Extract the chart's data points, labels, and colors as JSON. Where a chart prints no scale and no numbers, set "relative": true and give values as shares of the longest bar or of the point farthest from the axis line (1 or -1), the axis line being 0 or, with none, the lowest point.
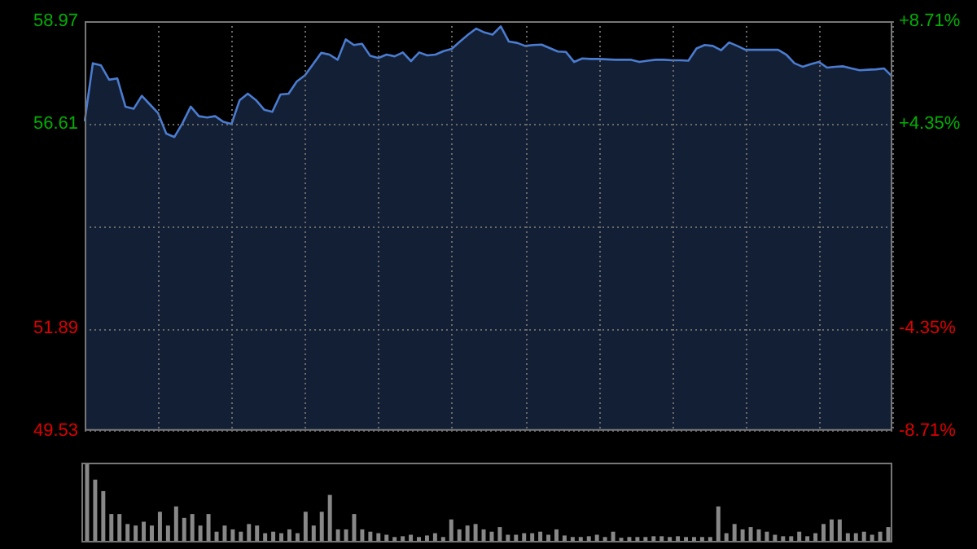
{
  "chart_data": [
    {
      "type": "area",
      "categories": [
        null,
        null,
        null,
        null,
        null,
        null,
        null,
        null,
        null,
        null,
        null,
        null,
        null,
        null,
        null,
        null,
        null,
        null,
        null,
        null,
        null,
        null,
        null,
        null,
        null,
        null,
        null,
        null,
        null,
        null,
        null,
        null,
        null,
        null,
        null,
        null,
        null,
        null,
        null,
        null,
        null,
        null,
        null,
        null,
        null,
        null,
        null,
        null,
        null,
        null,
        null,
        null,
        null,
        null,
        null,
        null,
        null,
        null,
        null,
        null,
        null,
        null,
        null,
        null,
        null,
        null,
        null,
        null,
        null,
        null,
        null,
        null,
        null,
        null,
        null,
        null,
        null,
        null,
        null,
        null,
        null,
        null,
        null,
        null,
        null,
        null,
        null,
        null,
        null,
        null,
        null,
        null,
        null,
        null,
        null,
        null,
        null,
        null,
        null,
        null
      ],
      "series": [
        {
          "color": "#4a7cd0",
          "values": [
            56.66,
            58.0,
            57.95,
            57.62,
            57.65,
            57.0,
            56.95,
            57.25,
            57.05,
            56.85,
            56.38,
            56.3,
            56.62,
            57.0,
            56.78,
            56.75,
            56.78,
            56.65,
            56.6,
            57.15,
            57.3,
            57.15,
            56.93,
            56.88,
            57.28,
            57.3,
            57.58,
            57.72,
            57.98,
            58.24,
            58.2,
            58.08,
            58.55,
            58.42,
            58.45,
            58.17,
            58.12,
            58.2,
            58.16,
            58.25,
            58.05,
            58.25,
            58.18,
            58.2,
            58.28,
            58.33,
            58.5,
            58.66,
            58.8,
            58.71,
            58.66,
            58.85,
            58.5,
            58.47,
            58.4,
            58.42,
            58.43,
            58.35,
            58.27,
            58.26,
            58.03,
            58.11,
            58.1,
            58.1,
            58.09,
            58.08,
            58.08,
            58.08,
            58.03,
            58.06,
            58.08,
            58.08,
            58.07,
            58.07,
            58.06,
            58.34,
            58.42,
            58.4,
            58.3,
            58.48,
            58.4,
            58.31,
            58.31,
            58.31,
            58.31,
            58.31,
            58.2,
            58.0,
            57.92,
            57.98,
            58.03,
            57.9,
            57.92,
            57.93,
            57.88,
            57.84,
            57.85,
            57.86,
            57.88,
            57.69
          ]
        }
      ],
      "ylim": [
        49.53,
        58.97
      ],
      "yticks": [
        58.97,
        56.61,
        {
          "value": 54.25,
          "label": null
        },
        51.89,
        49.53
      ],
      "y2lim": [
        -8.71,
        8.71
      ],
      "y2ticks": [
        {
          "value": 8.71,
          "label": "+8.71%"
        },
        {
          "value": 4.35,
          "label": "+4.35%"
        },
        {
          "value": -4.35,
          "label": "-4.35%"
        },
        {
          "value": -8.71,
          "label": "-8.71%"
        }
      ],
      "tick_labels": "y",
      "grid": true,
      "legend": false
    },
    {
      "type": "bar",
      "relative": true,
      "categories": [
        null,
        null,
        null,
        null,
        null,
        null,
        null,
        null,
        null,
        null,
        null,
        null,
        null,
        null,
        null,
        null,
        null,
        null,
        null,
        null,
        null,
        null,
        null,
        null,
        null,
        null,
        null,
        null,
        null,
        null,
        null,
        null,
        null,
        null,
        null,
        null,
        null,
        null,
        null,
        null,
        null,
        null,
        null,
        null,
        null,
        null,
        null,
        null,
        null,
        null,
        null,
        null,
        null,
        null,
        null,
        null,
        null,
        null,
        null,
        null,
        null,
        null,
        null,
        null,
        null,
        null,
        null,
        null,
        null,
        null,
        null,
        null,
        null,
        null,
        null,
        null,
        null,
        null,
        null,
        null,
        null,
        null,
        null,
        null,
        null,
        null,
        null,
        null,
        null,
        null,
        null,
        null,
        null,
        null,
        null,
        null,
        null,
        null,
        null,
        null
      ],
      "series": [
        {
          "color": "#888888",
          "values": [
            1.0,
            0.8,
            0.65,
            0.35,
            0.35,
            0.22,
            0.2,
            0.25,
            0.2,
            0.38,
            0.2,
            0.45,
            0.3,
            0.35,
            0.2,
            0.35,
            0.12,
            0.2,
            0.15,
            0.12,
            0.22,
            0.2,
            0.1,
            0.12,
            0.1,
            0.15,
            0.1,
            0.38,
            0.2,
            0.38,
            0.6,
            0.15,
            0.15,
            0.35,
            0.15,
            0.12,
            0.1,
            0.08,
            0.05,
            0.06,
            0.08,
            0.05,
            0.07,
            0.1,
            0.05,
            0.28,
            0.15,
            0.2,
            0.22,
            0.15,
            0.12,
            0.18,
            0.08,
            0.08,
            0.1,
            0.1,
            0.12,
            0.08,
            0.15,
            0.07,
            0.05,
            0.05,
            0.06,
            0.08,
            0.05,
            0.12,
            0.04,
            0.05,
            0.05,
            0.05,
            0.06,
            0.06,
            0.05,
            0.06,
            0.05,
            0.05,
            0.05,
            0.05,
            0.45,
            0.1,
            0.22,
            0.15,
            0.18,
            0.15,
            0.12,
            0.08,
            0.06,
            0.06,
            0.12,
            0.06,
            0.1,
            0.22,
            0.28,
            0.28,
            0.1,
            0.1,
            0.12,
            0.08,
            0.12,
            0.18
          ]
        }
      ],
      "tick_labels": false,
      "legend": false
    }
  ]
}
